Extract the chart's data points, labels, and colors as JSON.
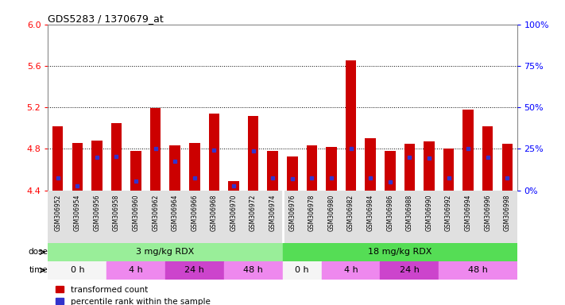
{
  "title": "GDS5283 / 1370679_at",
  "samples": [
    "GSM306952",
    "GSM306954",
    "GSM306956",
    "GSM306958",
    "GSM306960",
    "GSM306962",
    "GSM306964",
    "GSM306966",
    "GSM306968",
    "GSM306970",
    "GSM306972",
    "GSM306974",
    "GSM306976",
    "GSM306978",
    "GSM306980",
    "GSM306982",
    "GSM306984",
    "GSM306986",
    "GSM306988",
    "GSM306990",
    "GSM306992",
    "GSM306994",
    "GSM306996",
    "GSM306998"
  ],
  "red_values": [
    5.02,
    4.86,
    4.88,
    5.05,
    4.78,
    5.19,
    4.83,
    4.86,
    5.14,
    4.49,
    5.12,
    4.78,
    4.73,
    4.83,
    4.82,
    5.65,
    4.9,
    4.78,
    4.85,
    4.87,
    4.8,
    5.18,
    5.02,
    4.85
  ],
  "blue_values": [
    4.52,
    4.44,
    4.72,
    4.73,
    4.49,
    4.8,
    4.68,
    4.52,
    4.79,
    4.44,
    4.78,
    4.52,
    4.51,
    4.52,
    4.52,
    4.8,
    4.52,
    4.48,
    4.72,
    4.71,
    4.52,
    4.8,
    4.72,
    4.52
  ],
  "ymin": 4.4,
  "ymax": 6.0,
  "yticks_left": [
    4.4,
    4.8,
    5.2,
    5.6,
    6.0
  ],
  "yticks_right": [
    0,
    25,
    50,
    75,
    100
  ],
  "bar_color": "#cc0000",
  "blue_color": "#3333cc",
  "dose_colors": [
    "#99ee99",
    "#55dd55"
  ],
  "dose_groups": [
    {
      "label": "3 mg/kg RDX",
      "start": 0,
      "end": 11
    },
    {
      "label": "18 mg/kg RDX",
      "start": 12,
      "end": 23
    }
  ],
  "time_groups": [
    {
      "label": "0 h",
      "start": 0,
      "end": 2,
      "color": "#f5f5f5"
    },
    {
      "label": "4 h",
      "start": 3,
      "end": 5,
      "color": "#ee88ee"
    },
    {
      "label": "24 h",
      "start": 6,
      "end": 8,
      "color": "#cc44cc"
    },
    {
      "label": "48 h",
      "start": 9,
      "end": 11,
      "color": "#ee88ee"
    },
    {
      "label": "0 h",
      "start": 12,
      "end": 13,
      "color": "#f5f5f5"
    },
    {
      "label": "4 h",
      "start": 14,
      "end": 16,
      "color": "#ee88ee"
    },
    {
      "label": "24 h",
      "start": 17,
      "end": 19,
      "color": "#cc44cc"
    },
    {
      "label": "48 h",
      "start": 20,
      "end": 23,
      "color": "#ee88ee"
    }
  ],
  "bg_color": "#ffffff",
  "plot_bg": "#ffffff",
  "label_bg": "#e8e8e8"
}
